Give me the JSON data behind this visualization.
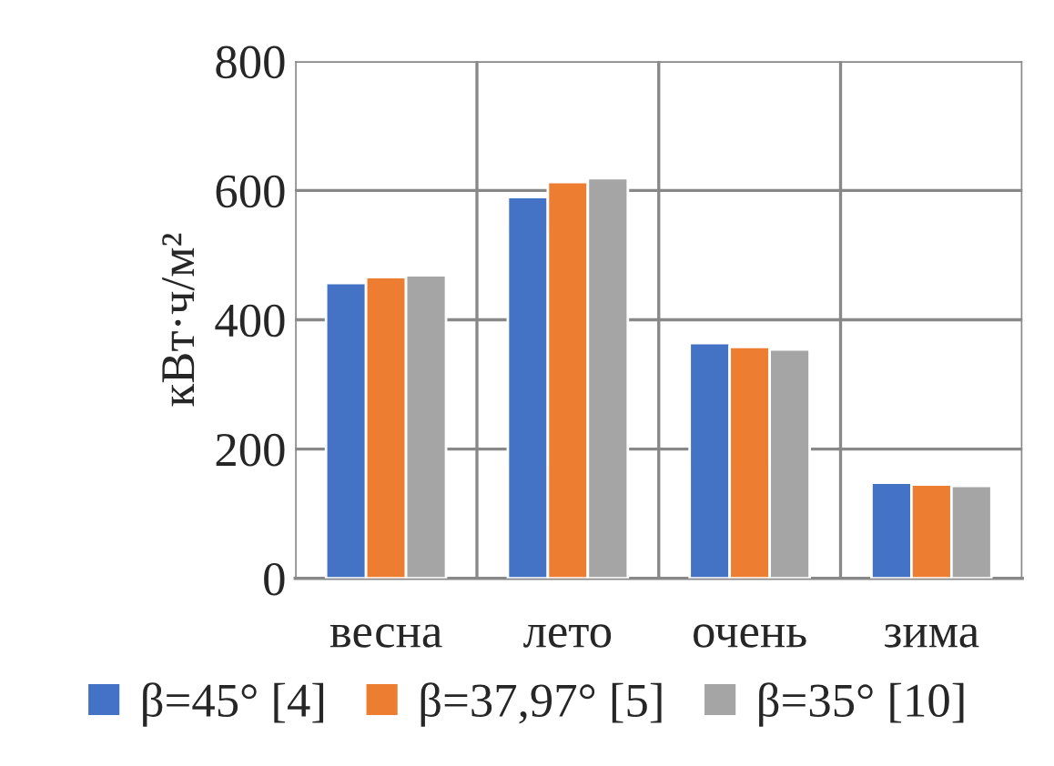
{
  "chart_data": {
    "type": "bar",
    "ylabel": "кВт·ч/м²",
    "categories": [
      "весна",
      "лето",
      "очень",
      "зима"
    ],
    "series": [
      {
        "name": "β=45° [4]",
        "color": "#4472c4",
        "values": [
          457,
          590,
          364,
          148
        ]
      },
      {
        "name": "β=37,97° [5]",
        "color": "#ed7d31",
        "values": [
          466,
          613,
          358,
          145
        ]
      },
      {
        "name": "β=35° [10]",
        "color": "#a5a5a5",
        "values": [
          469,
          619,
          354,
          143
        ]
      }
    ],
    "ylim": [
      0,
      800
    ],
    "yticks": [
      0,
      200,
      400,
      600,
      800
    ],
    "grid": true,
    "legend": "bottom"
  }
}
